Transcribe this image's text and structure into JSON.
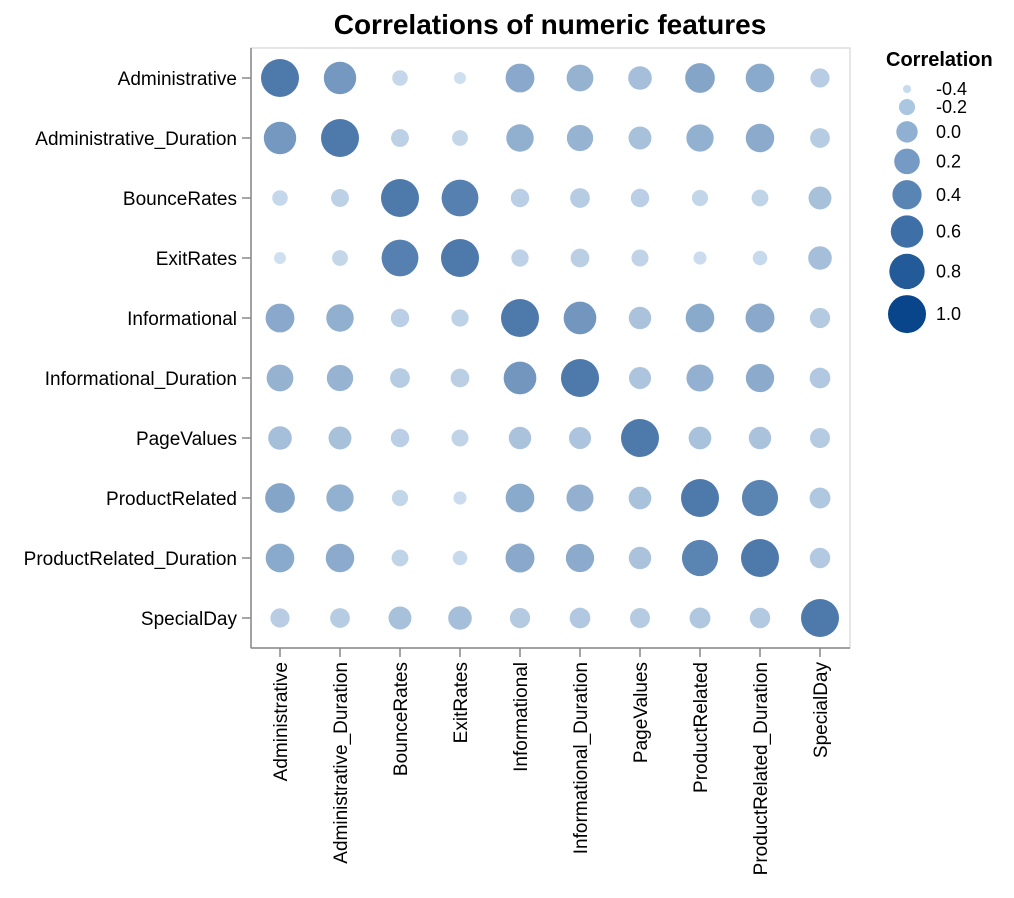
{
  "chart_data": {
    "type": "bubble-heatmap",
    "title": "Correlations of numeric features",
    "features": [
      "Administrative",
      "Administrative_Duration",
      "BounceRates",
      "ExitRates",
      "Informational",
      "Informational_Duration",
      "PageValues",
      "ProductRelated",
      "ProductRelated_Duration",
      "SpecialDay"
    ],
    "matrix": [
      [
        1.0,
        0.6,
        -0.22,
        -0.32,
        0.38,
        0.26,
        0.1,
        0.43,
        0.37,
        -0.09
      ],
      [
        0.6,
        1.0,
        -0.14,
        -0.21,
        0.3,
        0.24,
        0.07,
        0.29,
        0.36,
        -0.07
      ],
      [
        -0.22,
        -0.14,
        1.0,
        0.91,
        -0.12,
        -0.07,
        -0.12,
        -0.2,
        -0.18,
        0.07
      ],
      [
        -0.32,
        -0.21,
        0.91,
        1.0,
        -0.16,
        -0.11,
        -0.17,
        -0.29,
        -0.25,
        0.1
      ],
      [
        0.38,
        0.3,
        -0.12,
        -0.16,
        1.0,
        0.62,
        0.05,
        0.37,
        0.39,
        -0.05
      ],
      [
        0.26,
        0.24,
        -0.07,
        -0.11,
        0.62,
        1.0,
        0.03,
        0.28,
        0.35,
        -0.03
      ],
      [
        0.1,
        0.07,
        -0.12,
        -0.17,
        0.05,
        0.03,
        1.0,
        0.06,
        0.05,
        -0.06
      ],
      [
        0.43,
        0.29,
        -0.2,
        -0.29,
        0.37,
        0.28,
        0.06,
        1.0,
        0.86,
        -0.02
      ],
      [
        0.37,
        0.36,
        -0.18,
        -0.25,
        0.39,
        0.35,
        0.05,
        0.86,
        1.0,
        -0.04
      ],
      [
        -0.09,
        -0.07,
        0.07,
        0.1,
        -0.05,
        -0.03,
        -0.06,
        -0.02,
        -0.04,
        1.0
      ]
    ],
    "legend": {
      "title": "Correlation",
      "values": [
        -0.4,
        -0.2,
        0.0,
        0.2,
        0.4,
        0.6,
        0.8,
        1.0
      ],
      "labels": [
        "-0.4",
        "-0.2",
        "0.0",
        "0.2",
        "0.4",
        "0.6",
        "0.8",
        "1.0"
      ],
      "placement": "right"
    },
    "value_range": [
      -0.4,
      1.0
    ],
    "colors": {
      "low": "#c6dbef",
      "high": "#08458a",
      "cell": "#4a78b0"
    },
    "grid": false
  }
}
